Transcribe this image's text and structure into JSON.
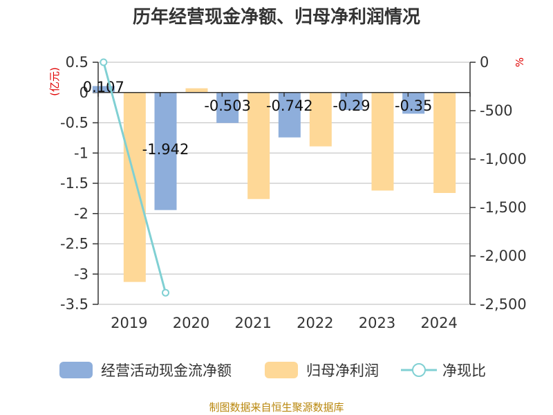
{
  "chart_data": {
    "type": "bar+line",
    "title": "历年经营现金净额、归母净利润情况",
    "categories": [
      "2019",
      "2020",
      "2021",
      "2022",
      "2023",
      "2024"
    ],
    "left_axis": {
      "unit": "(亿元)",
      "range": [
        -3.5,
        0.5
      ],
      "ticks": [
        0.5,
        0,
        -0.5,
        -1,
        -1.5,
        -2,
        -2.5,
        -3,
        -3.5
      ],
      "tick_labels": [
        "0.5",
        "0",
        "-0.5",
        "-1",
        "-1.5",
        "-2",
        "-2.5",
        "-3",
        "-3.5"
      ]
    },
    "right_axis": {
      "unit": "%",
      "range": [
        -2500,
        0
      ],
      "ticks": [
        0,
        -500,
        -1000,
        -1500,
        -2000,
        -2500
      ],
      "tick_labels": [
        "0",
        "-500",
        "-1,000",
        "-1,500",
        "-2,000",
        "-2,500"
      ]
    },
    "series": [
      {
        "name": "经营活动现金流净额",
        "kind": "bar",
        "axis": "left",
        "color": "#8eaedb",
        "values": [
          0.107,
          -1.942,
          -0.503,
          -0.742,
          -0.29,
          -0.35
        ],
        "labels": [
          "0.107",
          "-1.942",
          "-0.503",
          "-0.742",
          "-0.29",
          "-0.35"
        ]
      },
      {
        "name": "归母净利润",
        "kind": "bar",
        "axis": "left",
        "color": "#fed897",
        "values": [
          -3.13,
          0.07,
          -1.76,
          -0.89,
          -1.62,
          -1.66
        ]
      },
      {
        "name": "净现比",
        "kind": "line",
        "axis": "right",
        "color": "#80d0d3",
        "values": [
          0,
          -2380,
          null,
          null,
          null,
          null
        ]
      }
    ],
    "legend_position": "bottom",
    "source": "制图数据来自恒生聚源数据库"
  }
}
